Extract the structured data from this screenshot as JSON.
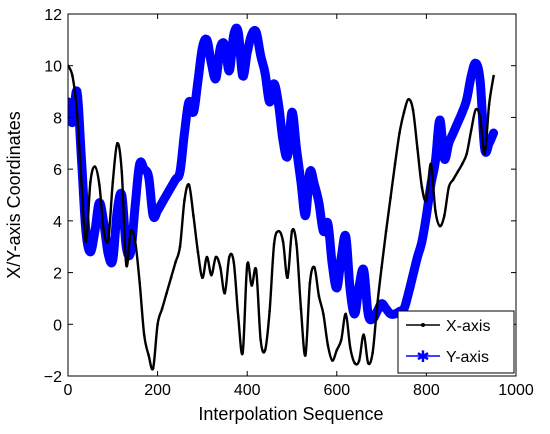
{
  "chart_data": {
    "type": "line",
    "title": "",
    "xlabel": "Interpolation Sequence",
    "ylabel": "X/Y-axis Coordinates",
    "xlim": [
      0,
      1000
    ],
    "ylim": [
      -2,
      12
    ],
    "xticks": [
      0,
      200,
      400,
      600,
      800,
      1000
    ],
    "yticks": [
      -2,
      0,
      2,
      4,
      6,
      8,
      10,
      12
    ],
    "grid": false,
    "legend_position": "bottom-right",
    "series": [
      {
        "name": "X-axis",
        "color": "#000000",
        "marker": "dot",
        "points": [
          [
            0,
            10.0
          ],
          [
            10,
            9.6
          ],
          [
            20,
            8.2
          ],
          [
            30,
            5.5
          ],
          [
            40,
            3.2
          ],
          [
            50,
            5.5
          ],
          [
            60,
            6.1
          ],
          [
            70,
            5.4
          ],
          [
            80,
            3.6
          ],
          [
            90,
            3.3
          ],
          [
            100,
            5.5
          ],
          [
            110,
            7.0
          ],
          [
            120,
            5.9
          ],
          [
            130,
            2.3
          ],
          [
            140,
            3.6
          ],
          [
            150,
            3.2
          ],
          [
            160,
            1.6
          ],
          [
            170,
            -0.4
          ],
          [
            180,
            -1.2
          ],
          [
            190,
            -1.7
          ],
          [
            200,
            0.0
          ],
          [
            210,
            0.6
          ],
          [
            220,
            1.2
          ],
          [
            230,
            1.8
          ],
          [
            240,
            2.4
          ],
          [
            250,
            3.0
          ],
          [
            260,
            4.8
          ],
          [
            270,
            5.4
          ],
          [
            280,
            4.2
          ],
          [
            290,
            2.8
          ],
          [
            300,
            1.8
          ],
          [
            310,
            2.6
          ],
          [
            320,
            1.9
          ],
          [
            330,
            2.6
          ],
          [
            340,
            2.2
          ],
          [
            350,
            1.2
          ],
          [
            360,
            2.6
          ],
          [
            370,
            2.4
          ],
          [
            380,
            0.3
          ],
          [
            390,
            -1.1
          ],
          [
            400,
            2.3
          ],
          [
            410,
            1.5
          ],
          [
            420,
            2.1
          ],
          [
            430,
            -0.6
          ],
          [
            440,
            -1.0
          ],
          [
            450,
            0.5
          ],
          [
            460,
            3.1
          ],
          [
            470,
            3.6
          ],
          [
            480,
            3.2
          ],
          [
            490,
            1.8
          ],
          [
            500,
            3.6
          ],
          [
            510,
            3.1
          ],
          [
            520,
            0.6
          ],
          [
            530,
            -1.2
          ],
          [
            540,
            1.6
          ],
          [
            550,
            2.2
          ],
          [
            560,
            1.1
          ],
          [
            570,
            0.4
          ],
          [
            580,
            -0.8
          ],
          [
            590,
            -1.4
          ],
          [
            600,
            -1.0
          ],
          [
            610,
            -0.6
          ],
          [
            620,
            0.4
          ],
          [
            630,
            -0.9
          ],
          [
            640,
            -1.5
          ],
          [
            650,
            -1.4
          ],
          [
            660,
            -0.4
          ],
          [
            670,
            -1.5
          ],
          [
            680,
            -1.1
          ],
          [
            690,
            0.7
          ],
          [
            700,
            2.2
          ],
          [
            710,
            3.6
          ],
          [
            720,
            4.9
          ],
          [
            730,
            6.2
          ],
          [
            740,
            7.4
          ],
          [
            750,
            8.2
          ],
          [
            760,
            8.7
          ],
          [
            770,
            8.3
          ],
          [
            780,
            6.8
          ],
          [
            790,
            5.3
          ],
          [
            800,
            4.8
          ],
          [
            810,
            6.2
          ],
          [
            820,
            4.4
          ],
          [
            830,
            3.8
          ],
          [
            840,
            4.2
          ],
          [
            850,
            5.3
          ],
          [
            860,
            5.6
          ],
          [
            870,
            5.9
          ],
          [
            880,
            6.2
          ],
          [
            890,
            6.6
          ],
          [
            900,
            7.5
          ],
          [
            910,
            8.3
          ],
          [
            920,
            8.0
          ],
          [
            930,
            6.6
          ],
          [
            940,
            8.5
          ],
          [
            950,
            9.6
          ]
        ]
      },
      {
        "name": "Y-axis",
        "color": "#0000ff",
        "marker": "star",
        "points": [
          [
            0,
            8.6
          ],
          [
            10,
            7.8
          ],
          [
            20,
            9.0
          ],
          [
            30,
            6.4
          ],
          [
            40,
            3.6
          ],
          [
            50,
            2.8
          ],
          [
            60,
            3.6
          ],
          [
            70,
            4.7
          ],
          [
            80,
            3.9
          ],
          [
            90,
            2.7
          ],
          [
            100,
            2.5
          ],
          [
            110,
            4.4
          ],
          [
            120,
            5.0
          ],
          [
            130,
            3.0
          ],
          [
            140,
            2.8
          ],
          [
            150,
            4.6
          ],
          [
            160,
            6.2
          ],
          [
            170,
            6.0
          ],
          [
            180,
            5.7
          ],
          [
            190,
            4.2
          ],
          [
            200,
            4.4
          ],
          [
            210,
            4.7
          ],
          [
            220,
            5.0
          ],
          [
            230,
            5.3
          ],
          [
            240,
            5.6
          ],
          [
            250,
            5.9
          ],
          [
            260,
            7.4
          ],
          [
            270,
            8.6
          ],
          [
            280,
            8.2
          ],
          [
            290,
            9.4
          ],
          [
            300,
            10.7
          ],
          [
            310,
            11.0
          ],
          [
            320,
            10.1
          ],
          [
            330,
            9.5
          ],
          [
            340,
            10.7
          ],
          [
            350,
            10.8
          ],
          [
            360,
            9.8
          ],
          [
            370,
            11.2
          ],
          [
            380,
            11.3
          ],
          [
            390,
            9.6
          ],
          [
            400,
            10.5
          ],
          [
            410,
            11.2
          ],
          [
            420,
            11.3
          ],
          [
            430,
            10.4
          ],
          [
            440,
            9.7
          ],
          [
            450,
            8.6
          ],
          [
            460,
            9.3
          ],
          [
            470,
            8.5
          ],
          [
            480,
            7.1
          ],
          [
            490,
            6.5
          ],
          [
            500,
            8.2
          ],
          [
            510,
            6.8
          ],
          [
            520,
            5.5
          ],
          [
            530,
            4.2
          ],
          [
            540,
            5.9
          ],
          [
            550,
            5.4
          ],
          [
            560,
            4.7
          ],
          [
            570,
            3.6
          ],
          [
            580,
            3.9
          ],
          [
            590,
            2.3
          ],
          [
            600,
            1.4
          ],
          [
            610,
            2.6
          ],
          [
            620,
            3.4
          ],
          [
            630,
            1.3
          ],
          [
            640,
            0.4
          ],
          [
            650,
            1.5
          ],
          [
            660,
            2.1
          ],
          [
            670,
            0.4
          ],
          [
            680,
            0.2
          ],
          [
            690,
            0.5
          ],
          [
            700,
            0.8
          ],
          [
            710,
            0.6
          ],
          [
            720,
            0.4
          ],
          [
            730,
            0.4
          ],
          [
            740,
            0.5
          ],
          [
            750,
            0.6
          ],
          [
            760,
            1.2
          ],
          [
            770,
            1.9
          ],
          [
            780,
            2.6
          ],
          [
            790,
            3.2
          ],
          [
            800,
            4.2
          ],
          [
            810,
            5.4
          ],
          [
            820,
            6.3
          ],
          [
            830,
            7.9
          ],
          [
            840,
            6.4
          ],
          [
            850,
            7.0
          ],
          [
            860,
            7.4
          ],
          [
            870,
            7.8
          ],
          [
            880,
            8.2
          ],
          [
            890,
            8.7
          ],
          [
            900,
            9.6
          ],
          [
            910,
            10.1
          ],
          [
            920,
            9.4
          ],
          [
            930,
            6.8
          ],
          [
            940,
            7.0
          ],
          [
            950,
            7.4
          ]
        ]
      }
    ]
  }
}
